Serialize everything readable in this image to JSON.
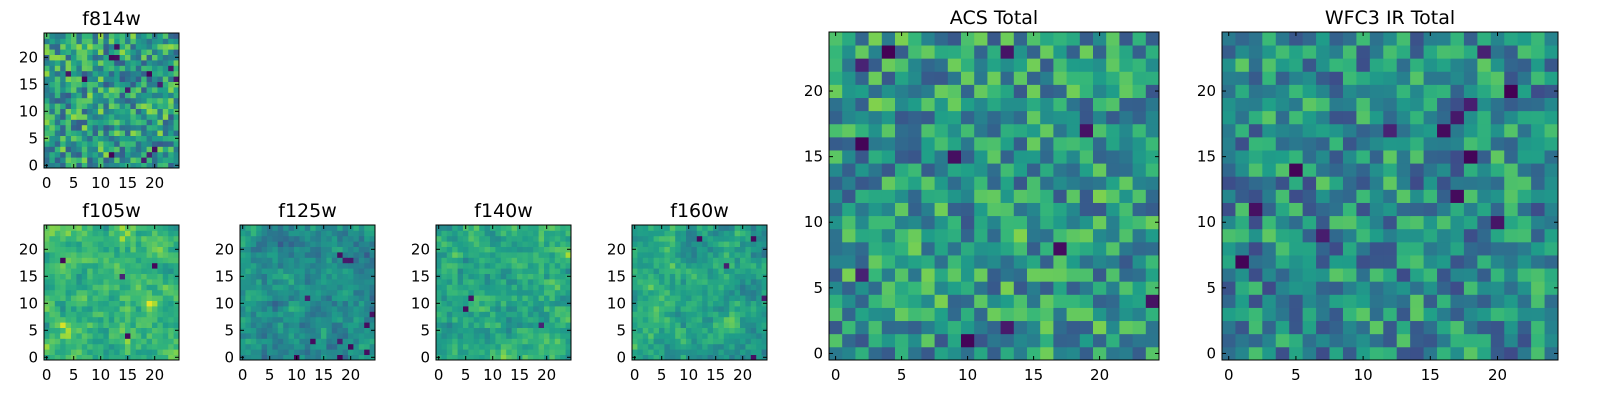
{
  "figure": {
    "palette": "viridis"
  },
  "chart_data": [
    {
      "id": "f814w",
      "type": "heatmap",
      "title": "f814w",
      "grid_size": 25,
      "xlim": [
        0,
        24
      ],
      "ylim": [
        0,
        24
      ],
      "xticks": [
        0,
        5,
        10,
        15,
        20
      ],
      "yticks": [
        0,
        5,
        10,
        15,
        20
      ],
      "style": "pixel-noise",
      "seed": 11,
      "dark_cells": 14,
      "bias": 0.62
    },
    {
      "id": "f105w",
      "type": "heatmap",
      "title": "f105w",
      "grid_size": 25,
      "xlim": [
        0,
        24
      ],
      "ylim": [
        0,
        24
      ],
      "xticks": [
        0,
        5,
        10,
        15,
        20
      ],
      "yticks": [
        0,
        5,
        10,
        15,
        20
      ],
      "style": "smooth-blocks",
      "seed": 23,
      "dark_cells": 4,
      "bias": 0.75
    },
    {
      "id": "f125w",
      "type": "heatmap",
      "title": "f125w",
      "grid_size": 25,
      "xlim": [
        0,
        24
      ],
      "ylim": [
        0,
        24
      ],
      "xticks": [
        0,
        5,
        10,
        15,
        20
      ],
      "yticks": [
        0,
        5,
        10,
        15,
        20
      ],
      "style": "smooth-blocks",
      "seed": 37,
      "dark_cells": 12,
      "bias": 0.55
    },
    {
      "id": "f140w",
      "type": "heatmap",
      "title": "f140w",
      "grid_size": 25,
      "xlim": [
        0,
        24
      ],
      "ylim": [
        0,
        24
      ],
      "xticks": [
        0,
        5,
        10,
        15,
        20
      ],
      "yticks": [
        0,
        5,
        10,
        15,
        20
      ],
      "style": "smooth-blocks",
      "seed": 41,
      "dark_cells": 3,
      "bias": 0.68
    },
    {
      "id": "f160w",
      "type": "heatmap",
      "title": "f160w",
      "grid_size": 25,
      "xlim": [
        0,
        24
      ],
      "ylim": [
        0,
        24
      ],
      "xticks": [
        0,
        5,
        10,
        15,
        20
      ],
      "yticks": [
        0,
        5,
        10,
        15,
        20
      ],
      "style": "smooth-blocks",
      "seed": 53,
      "dark_cells": 5,
      "bias": 0.66
    },
    {
      "id": "acs_total",
      "type": "heatmap",
      "title": "ACS Total",
      "grid_size": 25,
      "xlim": [
        0,
        24
      ],
      "ylim": [
        0,
        24
      ],
      "xticks": [
        0,
        5,
        10,
        15,
        20
      ],
      "yticks": [
        0,
        5,
        10,
        15,
        20
      ],
      "style": "pixel-noise",
      "seed": 67,
      "dark_cells": 11,
      "bias": 0.6
    },
    {
      "id": "wfc3_ir_total",
      "type": "heatmap",
      "title": "WFC3 IR Total",
      "grid_size": 25,
      "xlim": [
        0,
        24
      ],
      "ylim": [
        0,
        24
      ],
      "xticks": [
        0,
        5,
        10,
        15,
        20
      ],
      "yticks": [
        0,
        5,
        10,
        15,
        20
      ],
      "style": "pixel-noise",
      "seed": 79,
      "dark_cells": 13,
      "bias": 0.55
    }
  ]
}
